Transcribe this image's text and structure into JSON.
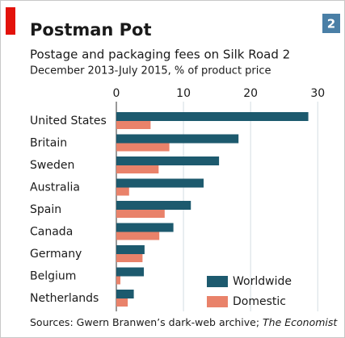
{
  "chart_data": {
    "type": "bar",
    "orientation": "horizontal",
    "title": "Postman Pot",
    "subtitle": "Postage and packaging fees on Silk Road 2",
    "subtitle2": "December 2013-July 2015, % of product price",
    "badge": "2",
    "source": "Sources: Gwern Branwen’s dark-web archive; ",
    "source_italic": "The Economist",
    "categories": [
      "United States",
      "Britain",
      "Sweden",
      "Australia",
      "Spain",
      "Canada",
      "Germany",
      "Belgium",
      "Netherlands"
    ],
    "series": [
      {
        "name": "Worldwide",
        "color": "#1d5a6e",
        "values": [
          28.6,
          18.2,
          15.3,
          13.0,
          11.1,
          8.5,
          4.2,
          4.1,
          2.6
        ]
      },
      {
        "name": "Domestic",
        "color": "#e9826a",
        "values": [
          5.1,
          7.9,
          6.3,
          1.9,
          7.2,
          6.4,
          3.9,
          0.6,
          1.7
        ]
      }
    ],
    "xlim": [
      0,
      32.5
    ],
    "xticks": [
      0,
      10,
      20,
      30
    ],
    "grid": true
  }
}
